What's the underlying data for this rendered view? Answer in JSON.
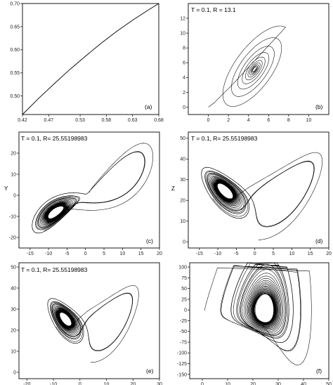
{
  "chart_data": [
    {
      "id": "a",
      "type": "line",
      "panel_label": "(a)",
      "annotation": "",
      "xlabel": "",
      "ylabel": "",
      "xlim": [
        0.42,
        0.68
      ],
      "ylim": [
        0.46,
        0.7
      ],
      "xticks": [
        "0.42",
        "0.47",
        "0.53",
        "0.58",
        "0.63",
        "0.68"
      ],
      "yticks": [
        "0.50",
        "0.55",
        "0.60",
        "0.65",
        "0.70"
      ],
      "series": [
        {
          "x": [
            0.42,
            0.45,
            0.48,
            0.51,
            0.54,
            0.57,
            0.6,
            0.63,
            0.66,
            0.68
          ],
          "y": [
            0.46,
            0.494,
            0.526,
            0.557,
            0.586,
            0.614,
            0.64,
            0.664,
            0.686,
            0.7
          ]
        }
      ]
    },
    {
      "id": "b",
      "type": "line",
      "panel_label": "(b)",
      "annotation": "T = 0.1, R = 13.1",
      "xlabel": "",
      "ylabel": "",
      "xlim": [
        -2,
        12
      ],
      "ylim": [
        -1,
        14
      ],
      "xticks": [
        "0",
        "2",
        "4",
        "6",
        "8",
        "10"
      ],
      "yticks": [
        "0",
        "2",
        "4",
        "6",
        "8",
        "10",
        "12"
      ],
      "trajectory": {
        "kind": "spiral",
        "center": [
          4.6,
          5.1
        ],
        "start": [
          0,
          0
        ]
      }
    },
    {
      "id": "c",
      "type": "line",
      "panel_label": "(c)",
      "annotation": "T = 0.1, R= 25.55198983",
      "xlabel": "",
      "ylabel": "Y",
      "xlim": [
        -18,
        20
      ],
      "ylim": [
        -25,
        30
      ],
      "xticks": [
        "-15",
        "-10",
        "-5",
        "0",
        "5",
        "10",
        "15",
        "20"
      ],
      "yticks": [
        "-20",
        "-10",
        "0",
        "10",
        "20"
      ],
      "trajectory": {
        "kind": "lorenz",
        "plane": "x-y"
      }
    },
    {
      "id": "d",
      "type": "line",
      "panel_label": "(d)",
      "annotation": "T = 0.1, R= 25.55198983",
      "xlabel": "",
      "ylabel": "Z",
      "xlim": [
        -18,
        20
      ],
      "ylim": [
        -3,
        53
      ],
      "xticks": [
        "-15",
        "-10",
        "-5",
        "0",
        "5",
        "10",
        "15",
        "20"
      ],
      "yticks": [
        "0",
        "10",
        "20",
        "30",
        "40",
        "50"
      ],
      "trajectory": {
        "kind": "lorenz",
        "plane": "x-z"
      }
    },
    {
      "id": "e",
      "type": "line",
      "panel_label": "(e)",
      "annotation": "T = 0.1, R= 25.55198983",
      "xlabel": "",
      "ylabel": "",
      "xlim": [
        -23,
        30
      ],
      "ylim": [
        -3,
        52
      ],
      "xticks": [
        "-20",
        "-10",
        "0",
        "10",
        "20",
        "30"
      ],
      "yticks": [
        "0",
        "10",
        "20",
        "30",
        "40",
        "50"
      ],
      "trajectory": {
        "kind": "lorenz",
        "plane": "x-z rotated"
      }
    },
    {
      "id": "f",
      "type": "line",
      "panel_label": "(f)",
      "annotation": "",
      "xlabel": "",
      "ylabel": "",
      "xlim": [
        -5,
        50
      ],
      "ylim": [
        -160,
        110
      ],
      "xticks": [
        "0",
        "10",
        "20",
        "30",
        "40",
        "50"
      ],
      "yticks": [
        "-150",
        "-125",
        "-100",
        "-75",
        "-50",
        "-25",
        "0",
        "25",
        "50",
        "75",
        "100"
      ],
      "trajectory": {
        "kind": "lorenz",
        "plane": "z-derivative"
      }
    }
  ]
}
